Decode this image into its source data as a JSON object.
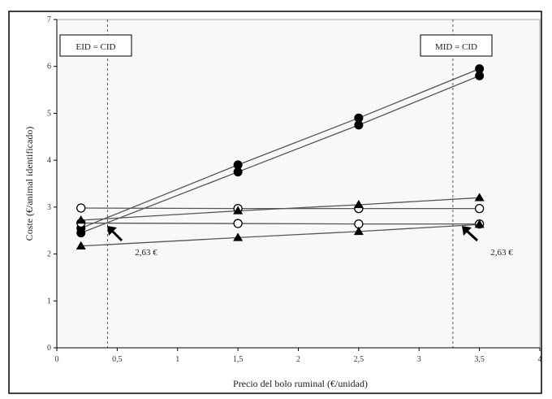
{
  "chart_data": {
    "type": "line",
    "xlabel": "Precio del bolo ruminal (€/unidad)",
    "ylabel": "Coste (€/animal identificado)",
    "xlim": [
      0,
      4
    ],
    "ylim": [
      0,
      7
    ],
    "x_ticks": [
      "0",
      "0,5",
      "1",
      "1,5",
      "2",
      "2,5",
      "3",
      "3,5",
      "4"
    ],
    "y_ticks": [
      "0",
      "1",
      "2",
      "3",
      "4",
      "5",
      "6",
      "7"
    ],
    "grid": false,
    "series": [
      {
        "marker": "filled-circle",
        "color": "#000000",
        "x": [
          0.2,
          1.5,
          2.5,
          3.5
        ],
        "y": [
          2.55,
          3.9,
          4.9,
          5.95
        ]
      },
      {
        "marker": "filled-circle",
        "color": "#000000",
        "x": [
          0.2,
          1.5,
          2.5,
          3.5
        ],
        "y": [
          2.45,
          3.75,
          4.75,
          5.8
        ]
      },
      {
        "marker": "open-circle",
        "color": "#000000",
        "x": [
          0.2,
          1.5,
          2.5,
          3.5
        ],
        "y": [
          2.98,
          2.97,
          2.97,
          2.97
        ]
      },
      {
        "marker": "open-circle",
        "color": "#000000",
        "x": [
          0.2,
          1.5,
          2.5,
          3.5
        ],
        "y": [
          2.66,
          2.65,
          2.64,
          2.64
        ]
      },
      {
        "marker": "filled-triangle",
        "color": "#000000",
        "x": [
          0.2,
          1.5,
          2.5,
          3.5
        ],
        "y": [
          2.72,
          2.92,
          3.05,
          3.2
        ]
      },
      {
        "marker": "filled-triangle",
        "color": "#000000",
        "x": [
          0.2,
          1.5,
          2.5,
          3.5
        ],
        "y": [
          2.17,
          2.35,
          2.48,
          2.63
        ]
      }
    ],
    "annotations": [
      {
        "text": "EID = CID",
        "x": 0.42,
        "type": "vertical-line"
      },
      {
        "text": "MID = CID",
        "x": 3.28,
        "type": "vertical-line"
      },
      {
        "text": "2,63 €",
        "arrow_target_x": 0.42,
        "arrow_target_y": 2.63
      },
      {
        "text": "2,63 €",
        "arrow_target_x": 3.28,
        "arrow_target_y": 2.63
      }
    ]
  }
}
